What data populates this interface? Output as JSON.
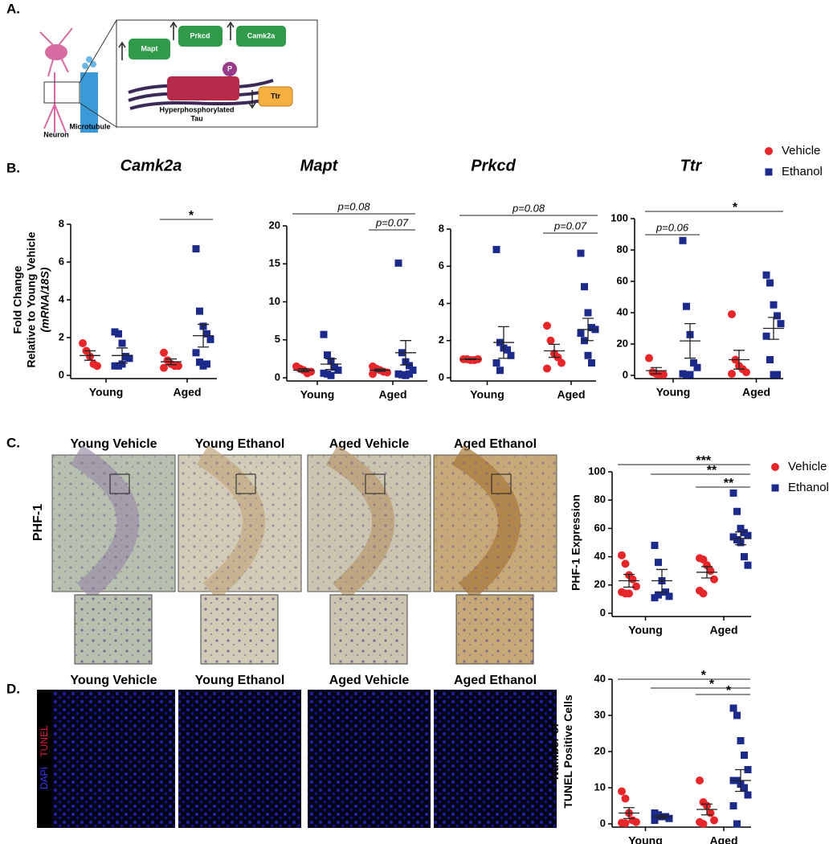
{
  "panels": [
    "A.",
    "B.",
    "C.",
    "D."
  ],
  "diagram": {
    "genes_up": [
      "Mapt",
      "Prkcd",
      "Camk2a"
    ],
    "gene_down": "Ttr",
    "phospho": "P",
    "tau": [
      "Hyperphosphorylated",
      "Tau"
    ],
    "neuron": "Neuron",
    "microtubule": "Microtubule"
  },
  "histology_c": {
    "stain": "PHF-1",
    "columns": [
      "Young Vehicle",
      "Young Ethanol",
      "Aged Vehicle",
      "Aged Ethanol"
    ]
  },
  "histology_d": {
    "stains": [
      "DAPI",
      "TUNEL"
    ],
    "columns": [
      "Young Vehicle",
      "Young Ethanol",
      "Aged Vehicle",
      "Aged Ethanol"
    ]
  },
  "chart_data": [
    {
      "type": "dot",
      "title": "Camk2a",
      "ylabel": [
        "Fold Change",
        "Relative to Young Vehicle",
        "(mRNA/18S)"
      ],
      "categories": [
        "Young",
        "Aged"
      ],
      "ylim": [
        0,
        8
      ],
      "yticks": [
        0,
        2,
        4,
        6,
        8
      ],
      "annotations": [
        "*"
      ],
      "series": [
        {
          "color": "#e8262a",
          "marker": "circle",
          "values": [
            [
              1.7,
              1.3,
              1.0,
              0.6,
              0.5
            ],
            [
              1.2,
              0.8,
              0.6,
              0.5,
              0.5,
              0.4
            ]
          ],
          "mean": [
            1.05,
            0.72
          ],
          "sem": [
            0.25,
            0.15
          ]
        },
        {
          "color": "#1c2a8c",
          "marker": "square",
          "values": [
            [
              2.3,
              2.2,
              1.7,
              1.0,
              0.9,
              0.5,
              0.5,
              0.6
            ],
            [
              6.7,
              3.4,
              2.6,
              2.2,
              1.9,
              1.2,
              0.7,
              0.5,
              0.6
            ]
          ],
          "mean": [
            1.05,
            2.1
          ],
          "sem": [
            0.4,
            0.6
          ]
        }
      ]
    },
    {
      "type": "dot",
      "title": "Mapt",
      "categories": [
        "Young",
        "Aged"
      ],
      "ylim": [
        0,
        20
      ],
      "yticks": [
        0,
        5,
        10,
        15,
        20
      ],
      "annotations": [
        "p=0.08",
        "p=0.07"
      ],
      "series": [
        {
          "color": "#e8262a",
          "marker": "circle",
          "values": [
            [
              1.5,
              1.2,
              1.0,
              0.6,
              0.8
            ],
            [
              1.5,
              1.2,
              1.0,
              0.8,
              0.7,
              0.5
            ]
          ],
          "mean": [
            1.0,
            1.0
          ],
          "sem": [
            0.2,
            0.15
          ]
        },
        {
          "color": "#1c2a8c",
          "marker": "square",
          "values": [
            [
              5.7,
              3.0,
              2.2,
              1.4,
              1.0,
              0.6,
              0.5,
              0.3
            ],
            [
              15.1,
              3.3,
              2.1,
              1.6,
              1.0,
              0.5,
              0.4,
              0.3,
              0.5
            ]
          ],
          "mean": [
            1.8,
            3.3
          ],
          "sem": [
            0.7,
            1.6
          ]
        }
      ]
    },
    {
      "type": "dot",
      "title": "Prkcd",
      "categories": [
        "Young",
        "Aged"
      ],
      "ylim": [
        0,
        8
      ],
      "yticks": [
        0,
        2,
        4,
        6,
        8
      ],
      "annotations": [
        "p=0.08",
        "p=0.07"
      ],
      "series": [
        {
          "color": "#e8262a",
          "marker": "circle",
          "values": [
            [
              1.0,
              1.0,
              0.95,
              0.95,
              1.0
            ],
            [
              2.8,
              2.0,
              1.3,
              1.1,
              0.8,
              0.5
            ]
          ],
          "mean": [
            1.0,
            1.45
          ],
          "sem": [
            0.02,
            0.35
          ]
        },
        {
          "color": "#1c2a8c",
          "marker": "square",
          "values": [
            [
              6.9,
              1.9,
              1.6,
              1.5,
              1.2,
              0.8,
              0.4
            ],
            [
              6.7,
              4.9,
              3.5,
              2.7,
              2.6,
              2.4,
              2.0,
              1.2,
              0.8
            ]
          ],
          "mean": [
            1.9,
            2.6
          ],
          "sem": [
            0.85,
            0.6
          ]
        }
      ]
    },
    {
      "type": "dot",
      "title": "Ttr",
      "legend": "top-right",
      "categories": [
        "Young",
        "Aged"
      ],
      "ylim": [
        0,
        100
      ],
      "yticks": [
        0,
        20,
        40,
        60,
        80,
        100
      ],
      "annotations": [
        "*",
        "p=0.06"
      ],
      "series": [
        {
          "name": "Vehicle",
          "color": "#e8262a",
          "marker": "circle",
          "values": [
            [
              11,
              2,
              1,
              0.5,
              0.5
            ],
            [
              39,
              10,
              6,
              4,
              2,
              1
            ]
          ],
          "mean": [
            3,
            10
          ],
          "sem": [
            2,
            6
          ]
        },
        {
          "name": "Ethanol",
          "color": "#1c2a8c",
          "marker": "square",
          "values": [
            [
              86,
              44,
              26,
              8,
              5,
              1,
              0.5,
              0.5
            ],
            [
              64,
              59,
              45,
              38,
              33,
              25,
              10,
              0.5,
              0.5
            ]
          ],
          "mean": [
            22,
            30
          ],
          "sem": [
            11,
            7
          ]
        }
      ]
    },
    {
      "type": "dot",
      "ylabel": [
        "PHF-1 Expression"
      ],
      "legend": "top-right",
      "categories": [
        "Young",
        "Aged"
      ],
      "ylim": [
        0,
        100
      ],
      "yticks": [
        0,
        20,
        40,
        60,
        80,
        100
      ],
      "annotations": [
        "***",
        "**",
        "**"
      ],
      "series": [
        {
          "name": "Vehicle",
          "color": "#e8262a",
          "marker": "circle",
          "values": [
            [
              41,
              35,
              27,
              24,
              19,
              15,
              14,
              14
            ],
            [
              39,
              38,
              34,
              30,
              24,
              16,
              14
            ]
          ],
          "mean": [
            23,
            29
          ],
          "sem": [
            4.5,
            4
          ]
        },
        {
          "name": "Ethanol",
          "color": "#1c2a8c",
          "marker": "square",
          "values": [
            [
              48,
              36,
              23,
              15,
              12,
              11,
              13
            ],
            [
              85,
              72,
              60,
              57,
              55,
              54,
              52,
              50,
              40,
              34
            ]
          ],
          "mean": [
            23,
            53
          ],
          "sem": [
            8,
            4.5
          ]
        }
      ]
    },
    {
      "type": "dot",
      "ylabel": [
        "Number of",
        "TUNEL Positive Cells"
      ],
      "categories": [
        "Young",
        "Aged"
      ],
      "ylim": [
        0,
        40
      ],
      "yticks": [
        0,
        10,
        20,
        30,
        40
      ],
      "annotations": [
        "*",
        "*",
        "*"
      ],
      "series": [
        {
          "color": "#e8262a",
          "marker": "circle",
          "values": [
            [
              9,
              7,
              3,
              1,
              0.5,
              0.3,
              0.2
            ],
            [
              12,
              6,
              5,
              3,
              1,
              0.5,
              0
            ]
          ],
          "mean": [
            3,
            4
          ],
          "sem": [
            1.5,
            1.5
          ]
        },
        {
          "color": "#1c2a8c",
          "marker": "square",
          "values": [
            [
              3,
              2.5,
              2,
              2,
              1.5,
              1
            ],
            [
              32,
              30,
              23,
              19,
              15,
              12,
              12,
              11,
              10,
              8,
              5,
              0
            ]
          ],
          "mean": [
            2,
            12
          ],
          "sem": [
            0.4,
            3
          ]
        }
      ]
    }
  ]
}
